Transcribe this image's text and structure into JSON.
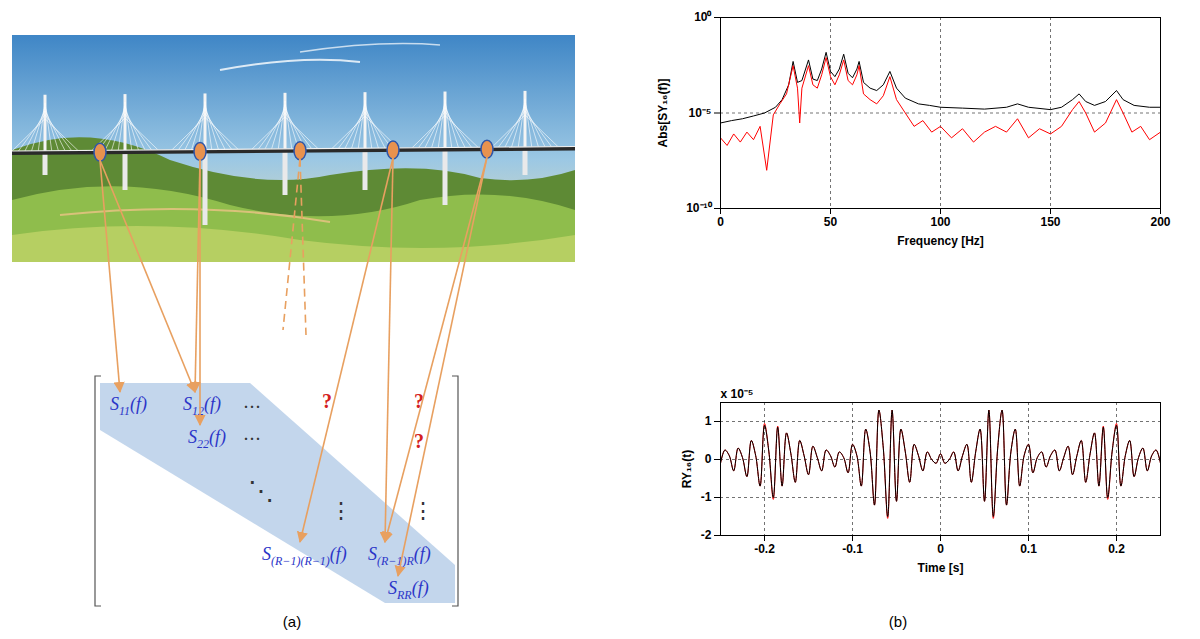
{
  "panel_labels": [
    "(a)",
    "(b)"
  ],
  "diagram": {
    "matrix": {
      "entries": [
        {
          "symbol": "S",
          "sub": "11",
          "arg": "(f)"
        },
        {
          "symbol": "S",
          "sub": "12",
          "arg": "(f)"
        },
        {
          "symbol": "S",
          "sub": "22",
          "arg": "(f)"
        },
        {
          "symbol": "S",
          "sub": "(R−1)(R−1)",
          "arg": "(f)"
        },
        {
          "symbol": "S",
          "sub": "(R−1)R",
          "arg": "(f)"
        },
        {
          "symbol": "S",
          "sub": "RR",
          "arg": "(f)"
        }
      ],
      "dots": [
        "…",
        "…",
        "⋱",
        "⋮",
        "⋮"
      ],
      "unknowns": [
        "?",
        "?",
        "?"
      ]
    }
  },
  "chart_data": [
    {
      "type": "line",
      "x_label": "Frequency [Hz]",
      "y_label": "Abs[SY₁₆(f)]",
      "xlim": [
        0,
        200
      ],
      "xticks": [
        0,
        50,
        100,
        150,
        200
      ],
      "ylim": [
        1e-10,
        1
      ],
      "yticks": [
        {
          "value": 1e-10,
          "label": "10⁻¹⁰"
        },
        {
          "value": 1e-05,
          "label": "10⁻⁵"
        },
        {
          "value": 1,
          "label": "10⁰"
        }
      ],
      "log": "y",
      "grid": true,
      "series": [
        {
          "color": "#000000",
          "x": [
            0,
            5,
            10,
            15,
            20,
            25,
            28,
            31,
            33,
            35,
            37,
            40,
            42,
            44,
            46,
            48,
            50,
            52,
            54,
            56,
            58,
            60,
            62,
            63,
            65,
            68,
            71,
            74,
            77,
            80,
            84,
            90,
            95,
            100,
            110,
            120,
            130,
            135,
            140,
            150,
            155,
            160,
            163,
            166,
            170,
            175,
            180,
            183,
            188,
            195,
            200
          ],
          "values": [
            3e-06,
            4e-06,
            5e-06,
            7e-06,
            1e-05,
            2e-05,
            5e-05,
            0.0003,
            0.005,
            0.0004,
            0.0005,
            0.006,
            0.0006,
            0.0005,
            0.002,
            0.015,
            0.0015,
            0.0008,
            0.002,
            0.012,
            0.0012,
            0.0007,
            0.002,
            0.005,
            0.0004,
            0.0002,
            0.00015,
            0.0003,
            0.0015,
            0.0002,
            6e-05,
            3e-05,
            2.5e-05,
            2e-05,
            1.8e-05,
            1.6e-05,
            2e-05,
            3e-05,
            2e-05,
            1.5e-05,
            2e-05,
            5e-05,
            0.0001,
            4e-05,
            2.5e-05,
            4e-05,
            0.00015,
            5e-05,
            2.5e-05,
            2e-05,
            2e-05
          ]
        },
        {
          "color": "#ff0000",
          "x": [
            0,
            3,
            6,
            9,
            12,
            15,
            18,
            21,
            24,
            27,
            30,
            33,
            35,
            36,
            37,
            40,
            42,
            44,
            46,
            48,
            50,
            52,
            54,
            56,
            58,
            60,
            62,
            63,
            65,
            68,
            71,
            74,
            77,
            80,
            84,
            88,
            92,
            96,
            100,
            105,
            110,
            115,
            120,
            125,
            130,
            135,
            140,
            145,
            150,
            155,
            160,
            163,
            166,
            170,
            175,
            180,
            183,
            187,
            191,
            195,
            200
          ],
          "values": [
            5e-07,
            2e-07,
            8e-07,
            3e-07,
            1e-06,
            4e-07,
            2e-06,
            1e-08,
            8e-06,
            3e-05,
            0.0001,
            0.003,
            0.0002,
            3e-06,
            0.0002,
            0.003,
            0.0003,
            0.0002,
            0.001,
            0.008,
            0.0008,
            0.0003,
            0.001,
            0.006,
            0.0005,
            0.0003,
            0.001,
            0.003,
            0.0001,
            5e-05,
            3e-05,
            8e-05,
            0.0008,
            5e-05,
            1e-05,
            2e-06,
            4e-06,
            1e-06,
            2e-06,
            5e-07,
            1.5e-06,
            3e-07,
            1e-06,
            2e-06,
            1e-06,
            5e-06,
            5e-07,
            1.5e-06,
            8e-07,
            2e-06,
            1.5e-05,
            4e-05,
            1e-05,
            1e-06,
            3e-06,
            5e-05,
            1e-05,
            1e-06,
            2e-06,
            4e-07,
            1e-06
          ]
        }
      ]
    },
    {
      "type": "line",
      "x_label": "Time [s]",
      "y_label": "RY₁₆(t)",
      "annotations": [
        "x 10⁻⁵"
      ],
      "xlim": [
        -0.25,
        0.25
      ],
      "xticks": [
        -0.2,
        -0.1,
        0,
        0.1,
        0.2
      ],
      "ylim": [
        -2,
        1.5
      ],
      "yticks": [
        -2,
        -1,
        0,
        1
      ],
      "grid": true,
      "x": [
        -0.25,
        -0.245,
        -0.24,
        -0.235,
        -0.23,
        -0.225,
        -0.22,
        -0.215,
        -0.21,
        -0.205,
        -0.2,
        -0.195,
        -0.19,
        -0.185,
        -0.18,
        -0.175,
        -0.17,
        -0.165,
        -0.16,
        -0.155,
        -0.15,
        -0.145,
        -0.14,
        -0.135,
        -0.13,
        -0.125,
        -0.12,
        -0.115,
        -0.11,
        -0.105,
        -0.1,
        -0.095,
        -0.09,
        -0.085,
        -0.08,
        -0.075,
        -0.07,
        -0.065,
        -0.06,
        -0.055,
        -0.05,
        -0.045,
        -0.04,
        -0.035,
        -0.03,
        -0.025,
        -0.02,
        -0.015,
        -0.01,
        -0.005,
        0,
        0.005,
        0.01,
        0.015,
        0.02,
        0.025,
        0.03,
        0.035,
        0.04,
        0.045,
        0.05,
        0.055,
        0.06,
        0.065,
        0.07,
        0.075,
        0.08,
        0.085,
        0.09,
        0.095,
        0.1,
        0.105,
        0.11,
        0.115,
        0.12,
        0.125,
        0.13,
        0.135,
        0.14,
        0.145,
        0.15,
        0.155,
        0.16,
        0.165,
        0.17,
        0.175,
        0.18,
        0.185,
        0.19,
        0.195,
        0.2,
        0.205,
        0.21,
        0.215,
        0.22,
        0.225,
        0.23,
        0.235,
        0.24,
        0.245,
        0.25
      ],
      "series": [
        {
          "color": "#ff0000",
          "values": [
            -0.1,
            0.25,
            0.1,
            -0.3,
            0.3,
            0.05,
            -0.45,
            0.5,
            0.1,
            -0.7,
            0.95,
            0.2,
            -1.05,
            0.88,
            -0.7,
            0.7,
            0.15,
            -0.6,
            0.5,
            0.1,
            -0.4,
            0.35,
            0.05,
            -0.3,
            0.25,
            0.1,
            -0.2,
            0.2,
            0.05,
            -0.35,
            0.4,
            0.1,
            -0.7,
            0.8,
            0.2,
            -1.2,
            1.3,
            0.3,
            -1.55,
            1.3,
            -1.1,
            0.8,
            0.2,
            -0.6,
            0.4,
            0.1,
            -0.3,
            0.2,
            0.0,
            -0.1,
            0.15,
            -0.1,
            0.0,
            0.2,
            -0.3,
            0.1,
            0.4,
            -0.6,
            0.2,
            0.8,
            -1.1,
            1.3,
            -1.55,
            0.3,
            1.3,
            -1.2,
            0.2,
            0.8,
            -0.7,
            0.1,
            0.4,
            -0.35,
            0.05,
            0.2,
            -0.2,
            0.1,
            0.25,
            -0.3,
            0.05,
            0.35,
            -0.4,
            0.1,
            0.5,
            -0.6,
            0.15,
            0.7,
            -0.7,
            0.88,
            -1.05,
            0.2,
            0.95,
            -0.7,
            0.1,
            0.5,
            -0.45,
            0.05,
            0.3,
            -0.3,
            0.1,
            0.25,
            -0.1
          ]
        },
        {
          "color": "#000000",
          "values": [
            -0.1,
            0.25,
            0.1,
            -0.3,
            0.3,
            0.05,
            -0.45,
            0.5,
            0.1,
            -0.7,
            0.9,
            0.2,
            -1.0,
            0.85,
            -0.7,
            0.7,
            0.15,
            -0.6,
            0.5,
            0.1,
            -0.4,
            0.35,
            0.05,
            -0.3,
            0.25,
            0.1,
            -0.2,
            0.2,
            0.05,
            -0.35,
            0.4,
            0.1,
            -0.7,
            0.8,
            0.2,
            -1.2,
            1.3,
            0.3,
            -1.5,
            1.3,
            -1.1,
            0.8,
            0.2,
            -0.6,
            0.4,
            0.1,
            -0.3,
            0.2,
            0.0,
            -0.1,
            0.15,
            -0.1,
            0.0,
            0.2,
            -0.3,
            0.1,
            0.4,
            -0.6,
            0.2,
            0.8,
            -1.1,
            1.3,
            -1.5,
            0.3,
            1.3,
            -1.2,
            0.2,
            0.8,
            -0.7,
            0.1,
            0.4,
            -0.35,
            0.05,
            0.2,
            -0.2,
            0.1,
            0.25,
            -0.3,
            0.05,
            0.35,
            -0.4,
            0.1,
            0.5,
            -0.6,
            0.15,
            0.7,
            -0.7,
            0.85,
            -1.0,
            0.2,
            0.9,
            -0.7,
            0.1,
            0.5,
            -0.45,
            0.05,
            0.3,
            -0.3,
            0.1,
            0.25,
            -0.1
          ]
        }
      ]
    }
  ]
}
